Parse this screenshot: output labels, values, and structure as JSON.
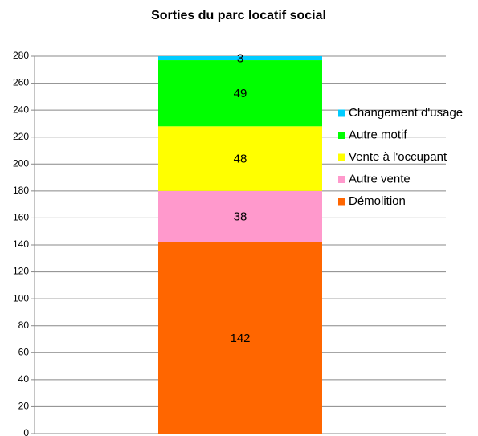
{
  "chart_data": {
    "type": "stacked_bar",
    "title": "Sorties du parc locatif social",
    "categories": [
      null
    ],
    "series": [
      {
        "name": "Démolition",
        "color": "#ff6600",
        "values": [
          142
        ]
      },
      {
        "name": "Autre vente",
        "color": "#ff99cc",
        "values": [
          38
        ]
      },
      {
        "name": "Vente à l'occupant",
        "color": "#ffff00",
        "values": [
          48
        ]
      },
      {
        "name": "Autre motif",
        "color": "#00ff00",
        "values": [
          49
        ]
      },
      {
        "name": "Changement d'usage",
        "color": "#00ccff",
        "values": [
          3
        ]
      }
    ],
    "ylim": [
      0,
      280
    ],
    "yticks": [
      0,
      20,
      40,
      60,
      80,
      100,
      120,
      140,
      160,
      180,
      200,
      220,
      240,
      260,
      280
    ],
    "grid": true,
    "legend": "right"
  }
}
